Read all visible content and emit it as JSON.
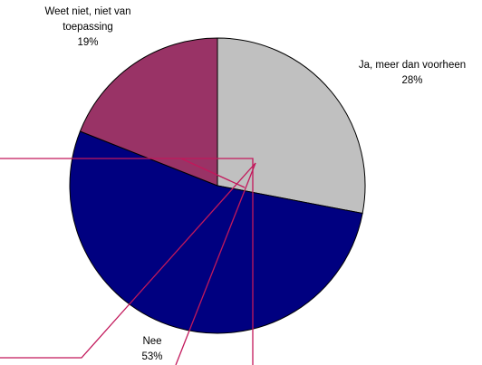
{
  "chart_data": {
    "type": "pie",
    "categories": [
      "Ja, meer dan voorheen",
      "Nee",
      "Weet niet, niet van toepassing"
    ],
    "values": [
      28,
      53,
      19
    ],
    "value_labels": [
      "28%",
      "53%",
      "19%"
    ],
    "colors": [
      "#c0c0c0",
      "#000080",
      "#993366"
    ]
  }
}
